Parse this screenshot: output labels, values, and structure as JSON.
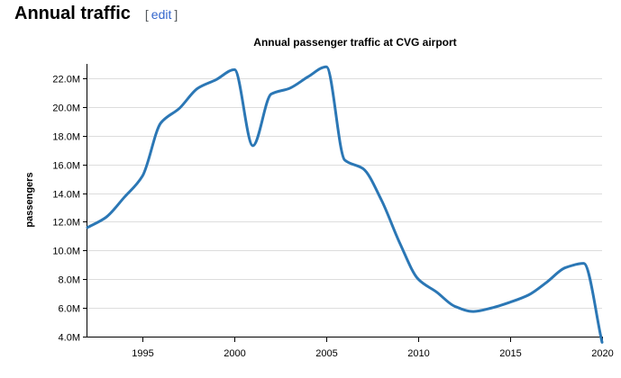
{
  "section": {
    "title": "Annual traffic",
    "edit_open": "[",
    "edit_label": "edit",
    "edit_close": "]"
  },
  "colors": {
    "line": "#2b77b5",
    "grid": "#dddddd",
    "axis": "#000000",
    "link": "#3366cc"
  },
  "chart_data": {
    "type": "line",
    "title": "Annual passenger traffic at CVG airport",
    "xlabel": "",
    "ylabel": "passengers",
    "xlim": [
      1992,
      2020
    ],
    "ylim": [
      4000000,
      23000000
    ],
    "grid": true,
    "x_ticks": [
      {
        "value": 1995,
        "label": "1995"
      },
      {
        "value": 2000,
        "label": "2000"
      },
      {
        "value": 2005,
        "label": "2005"
      },
      {
        "value": 2010,
        "label": "2010"
      },
      {
        "value": 2015,
        "label": "2015"
      },
      {
        "value": 2020,
        "label": "2020"
      }
    ],
    "y_ticks": [
      {
        "value": 4000000,
        "label": "4.0M"
      },
      {
        "value": 6000000,
        "label": "6.0M"
      },
      {
        "value": 8000000,
        "label": "8.0M"
      },
      {
        "value": 10000000,
        "label": "10.0M"
      },
      {
        "value": 12000000,
        "label": "12.0M"
      },
      {
        "value": 14000000,
        "label": "14.0M"
      },
      {
        "value": 16000000,
        "label": "16.0M"
      },
      {
        "value": 18000000,
        "label": "18.0M"
      },
      {
        "value": 20000000,
        "label": "20.0M"
      },
      {
        "value": 22000000,
        "label": "22.0M"
      }
    ],
    "series": [
      {
        "x": [
          1992,
          1993,
          1994,
          1995,
          1996,
          1997,
          1998,
          1999,
          2000,
          2001,
          2002,
          2003,
          2004,
          2005,
          2006,
          2007,
          2008,
          2009,
          2010,
          2011,
          2012,
          2013,
          2014,
          2015,
          2016,
          2017,
          2018,
          2019,
          2020
        ],
        "values": [
          11600000,
          12300000,
          13700000,
          15200000,
          18900000,
          19900000,
          21300000,
          21900000,
          22600000,
          17300000,
          20900000,
          21300000,
          22100000,
          22800000,
          16300000,
          15700000,
          13500000,
          10500000,
          8000000,
          7100000,
          6100000,
          5750000,
          6000000,
          6400000,
          6900000,
          7800000,
          8800000,
          9100000,
          3600000
        ]
      }
    ]
  }
}
